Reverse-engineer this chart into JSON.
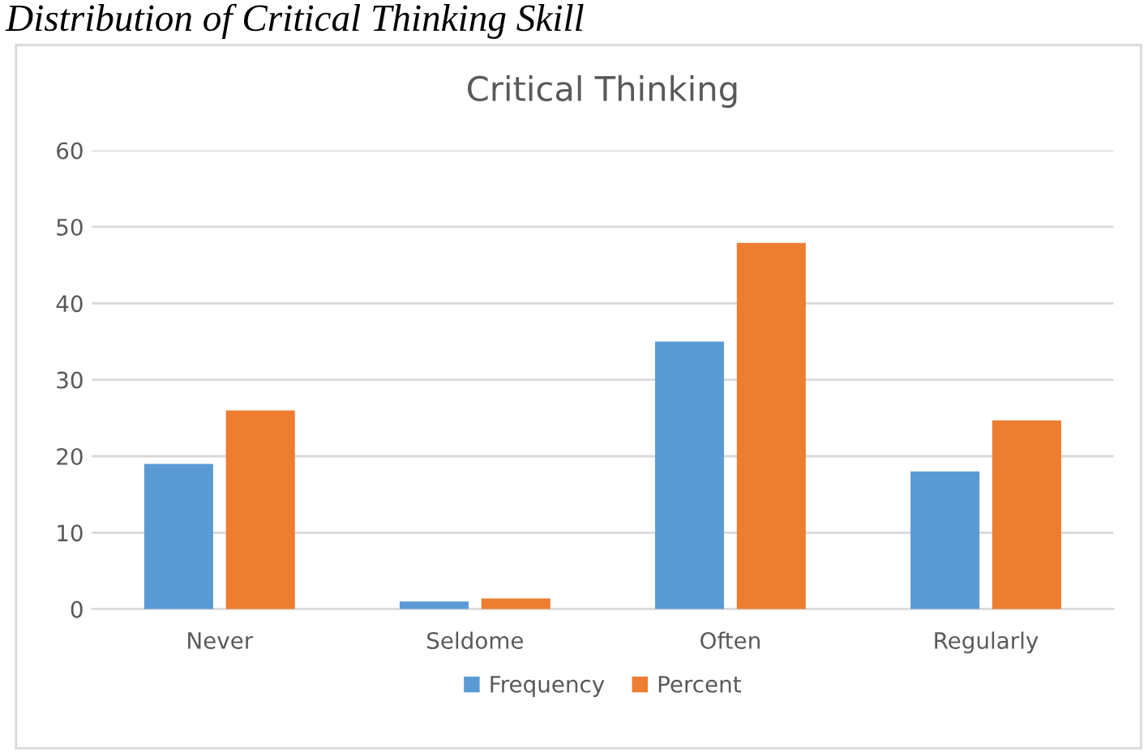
{
  "chart_data": {
    "type": "bar",
    "title": "Critical Thinking",
    "annotations": [
      "Distribution of Critical Thinking Skill"
    ],
    "categories": [
      "Never",
      "Seldome",
      "Often",
      "Regularly"
    ],
    "series": [
      {
        "name": "Frequency",
        "color": "#5b9bd5",
        "values": [
          19,
          1,
          35,
          18
        ]
      },
      {
        "name": "Percent",
        "color": "#ed7d31",
        "values": [
          26,
          1.4,
          47.9,
          24.7
        ]
      }
    ],
    "ylim": [
      0,
      60
    ],
    "yticks": [
      0,
      10,
      20,
      30,
      40,
      50,
      60
    ],
    "grid": "y",
    "legend": "bottom"
  }
}
